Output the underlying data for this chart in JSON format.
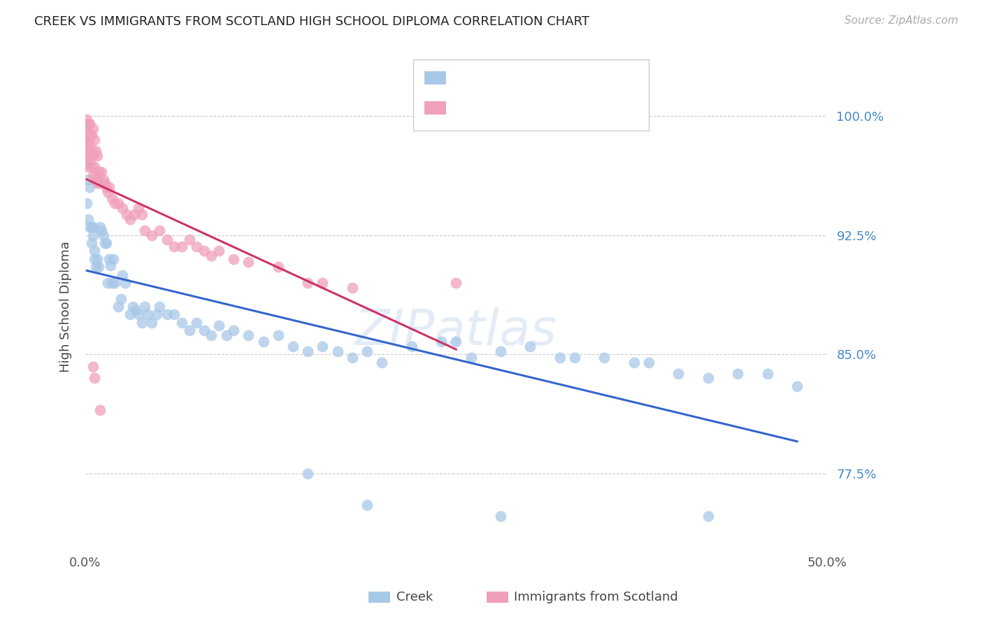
{
  "title": "CREEK VS IMMIGRANTS FROM SCOTLAND HIGH SCHOOL DIPLOMA CORRELATION CHART",
  "source": "Source: ZipAtlas.com",
  "ylabel": "High School Diploma",
  "ytick_labels": [
    "77.5%",
    "85.0%",
    "92.5%",
    "100.0%"
  ],
  "ytick_values": [
    0.775,
    0.85,
    0.925,
    1.0
  ],
  "xmin": 0.0,
  "xmax": 0.5,
  "ymin": 0.725,
  "ymax": 1.035,
  "legend_label1": "Creek",
  "legend_label2": "Immigrants from Scotland",
  "color_creek": "#a8c8e8",
  "color_scotland": "#f0a0b8",
  "color_creek_line": "#3366cc",
  "color_scotland_line": "#cc3366",
  "watermark": "ZIPatlas",
  "creek_x": [
    0.001,
    0.001,
    0.002,
    0.002,
    0.003,
    0.003,
    0.004,
    0.004,
    0.005,
    0.005,
    0.006,
    0.006,
    0.007,
    0.008,
    0.009,
    0.01,
    0.011,
    0.012,
    0.013,
    0.014,
    0.015,
    0.016,
    0.017,
    0.018,
    0.019,
    0.02,
    0.022,
    0.024,
    0.025,
    0.027,
    0.03,
    0.032,
    0.034,
    0.036,
    0.038,
    0.04,
    0.042,
    0.045,
    0.048,
    0.05,
    0.055,
    0.06,
    0.065,
    0.07,
    0.075,
    0.08,
    0.085,
    0.09,
    0.095,
    0.1,
    0.11,
    0.12,
    0.13,
    0.14,
    0.15,
    0.16,
    0.17,
    0.18,
    0.19,
    0.2,
    0.22,
    0.24,
    0.26,
    0.28,
    0.3,
    0.32,
    0.35,
    0.38,
    0.4,
    0.42,
    0.44,
    0.46,
    0.48,
    0.25,
    0.33,
    0.37,
    0.19,
    0.15,
    0.28,
    0.42
  ],
  "creek_y": [
    0.97,
    0.945,
    0.96,
    0.935,
    0.955,
    0.93,
    0.93,
    0.92,
    0.93,
    0.925,
    0.915,
    0.91,
    0.905,
    0.91,
    0.905,
    0.93,
    0.928,
    0.925,
    0.92,
    0.92,
    0.895,
    0.91,
    0.906,
    0.895,
    0.91,
    0.895,
    0.88,
    0.885,
    0.9,
    0.895,
    0.875,
    0.88,
    0.878,
    0.875,
    0.87,
    0.88,
    0.875,
    0.87,
    0.875,
    0.88,
    0.875,
    0.875,
    0.87,
    0.865,
    0.87,
    0.865,
    0.862,
    0.868,
    0.862,
    0.865,
    0.862,
    0.858,
    0.862,
    0.855,
    0.852,
    0.855,
    0.852,
    0.848,
    0.852,
    0.845,
    0.855,
    0.858,
    0.848,
    0.852,
    0.855,
    0.848,
    0.848,
    0.845,
    0.838,
    0.835,
    0.838,
    0.838,
    0.83,
    0.858,
    0.848,
    0.845,
    0.755,
    0.775,
    0.748,
    0.748
  ],
  "scotland_x": [
    0.001,
    0.001,
    0.001,
    0.001,
    0.001,
    0.002,
    0.002,
    0.002,
    0.002,
    0.003,
    0.003,
    0.003,
    0.003,
    0.004,
    0.004,
    0.004,
    0.005,
    0.005,
    0.005,
    0.006,
    0.006,
    0.007,
    0.007,
    0.008,
    0.008,
    0.009,
    0.01,
    0.011,
    0.012,
    0.013,
    0.014,
    0.015,
    0.016,
    0.018,
    0.02,
    0.022,
    0.025,
    0.028,
    0.03,
    0.033,
    0.036,
    0.038,
    0.04,
    0.045,
    0.05,
    0.055,
    0.06,
    0.065,
    0.07,
    0.075,
    0.08,
    0.085,
    0.09,
    0.1,
    0.11,
    0.13,
    0.15,
    0.16,
    0.18,
    0.25,
    0.005,
    0.006,
    0.01
  ],
  "scotland_y": [
    0.998,
    0.992,
    0.988,
    0.982,
    0.975,
    0.995,
    0.985,
    0.978,
    0.968,
    0.995,
    0.988,
    0.982,
    0.972,
    0.988,
    0.978,
    0.968,
    0.992,
    0.975,
    0.962,
    0.985,
    0.968,
    0.978,
    0.962,
    0.975,
    0.958,
    0.965,
    0.958,
    0.965,
    0.96,
    0.958,
    0.955,
    0.952,
    0.955,
    0.948,
    0.945,
    0.945,
    0.942,
    0.938,
    0.935,
    0.938,
    0.942,
    0.938,
    0.928,
    0.925,
    0.928,
    0.922,
    0.918,
    0.918,
    0.922,
    0.918,
    0.915,
    0.912,
    0.915,
    0.91,
    0.908,
    0.905,
    0.895,
    0.895,
    0.892,
    0.895,
    0.842,
    0.835,
    0.815
  ]
}
